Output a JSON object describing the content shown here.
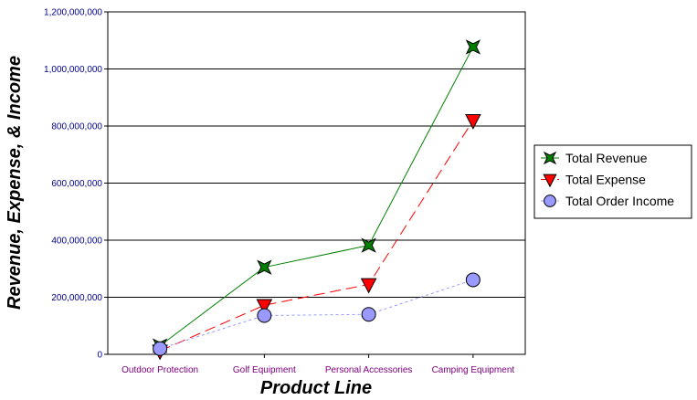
{
  "chart_data": {
    "type": "line",
    "categories": [
      "Outdoor Protection",
      "Golf Equipment",
      "Personal Accessories",
      "Camping Equipment"
    ],
    "series": [
      {
        "name": "Total Revenue",
        "values": [
          30000000,
          305000000,
          382000000,
          1077000000
        ],
        "color": "#008000",
        "line_color": "#008000",
        "marker": "star",
        "dash": "solid"
      },
      {
        "name": "Total Expense",
        "values": [
          12000000,
          172000000,
          245000000,
          820000000
        ],
        "color": "#ff0000",
        "line_color": "#ff0000",
        "marker": "triangle-down",
        "dash": "dashed"
      },
      {
        "name": "Total Order Income",
        "values": [
          20000000,
          136000000,
          140000000,
          261000000
        ],
        "color": "#9999ff",
        "line_color": "#9999ff",
        "marker": "circle",
        "dash": "dotted"
      }
    ],
    "xlabel": "Product Line",
    "ylabel": "Revenue, Expense, & Income",
    "ylim": [
      0,
      1200000000
    ],
    "yticks": [
      "0",
      "200,000,000",
      "400,000,000",
      "600,000,000",
      "800,000,000",
      "1,000,000,000",
      "1,200,000,000"
    ],
    "ytick_values": [
      0,
      200000000,
      400000000,
      600000000,
      800000000,
      1000000000,
      1200000000
    ],
    "ytick_color": "#00008b",
    "xtick_color": "#800080",
    "grid": "horizontal",
    "legend_position": "right"
  }
}
